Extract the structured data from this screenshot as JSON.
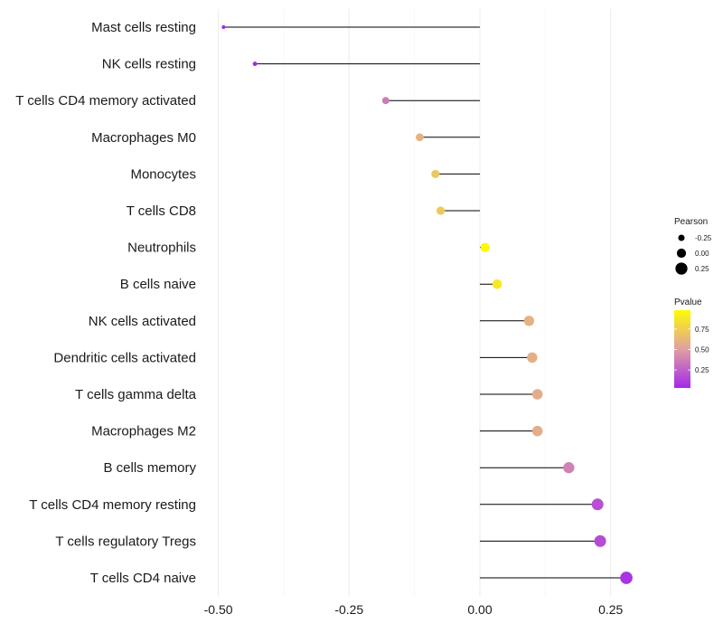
{
  "chart_data": {
    "type": "lollipop",
    "categories": [
      "Mast cells resting",
      "NK cells resting",
      "T cells CD4 memory activated",
      "Macrophages M0",
      "Monocytes",
      "T cells CD8",
      "Neutrophils",
      "B cells naive",
      "NK cells activated",
      "Dendritic cells activated",
      "T cells gamma delta",
      "Macrophages M2",
      "B cells memory",
      "T cells CD4 memory resting",
      "T cells regulatory  Tregs ",
      "T cells CD4 naive"
    ],
    "pearson": [
      -0.49,
      -0.43,
      -0.18,
      -0.115,
      -0.085,
      -0.075,
      0.01,
      0.033,
      0.094,
      0.1,
      0.11,
      0.11,
      0.17,
      0.225,
      0.23,
      0.28
    ],
    "pvalue": [
      0.02,
      0.03,
      0.35,
      0.6,
      0.7,
      0.72,
      0.97,
      0.88,
      0.6,
      0.58,
      0.57,
      0.57,
      0.38,
      0.18,
      0.17,
      0.08
    ],
    "x_ticks": [
      "-0.50",
      "-0.25",
      "0.00",
      "0.25"
    ],
    "x_tick_values": [
      -0.5,
      -0.25,
      0,
      0.25
    ],
    "xlim": [
      -0.52,
      0.33
    ],
    "xlabel": "",
    "ylabel": "",
    "title": "",
    "legend": {
      "size_title": "Pearson",
      "size_labels": [
        "-0.25",
        "0.00",
        "0.25"
      ],
      "size_values": [
        -0.25,
        0,
        0.25
      ],
      "color_title": "Pvalue",
      "color_labels": [
        "0.75",
        "0.50",
        "0.25"
      ],
      "color_values": [
        0.75,
        0.5,
        0.25
      ],
      "color_low": "#a020f0",
      "color_mid": "#e0a0a0",
      "color_high": "#ffff00",
      "color_range": [
        0.0,
        1.0
      ],
      "placement": "right"
    },
    "grid": true
  }
}
